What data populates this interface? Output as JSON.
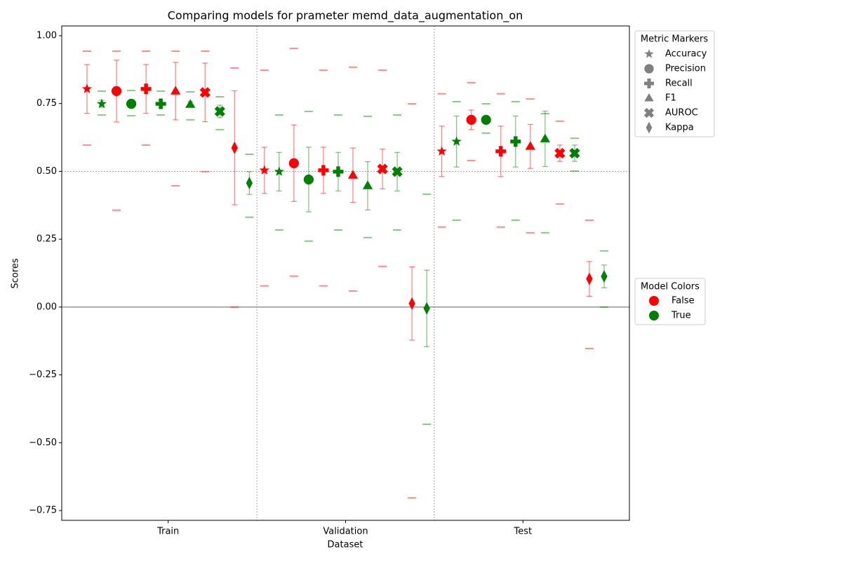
{
  "chart_data": {
    "type": "errorbar",
    "title": "Comparing models for prameter memd_data_augmentation_on",
    "xlabel": "Dataset",
    "ylabel": "Scores",
    "categories": [
      "Train",
      "Validation",
      "Test"
    ],
    "xlim": [
      -0.6,
      2.6
    ],
    "ylim": [
      -0.786,
      1.036
    ],
    "yticks": [
      {
        "value": -0.75,
        "label": "−0.75"
      },
      {
        "value": -0.5,
        "label": "−0.50"
      },
      {
        "value": -0.25,
        "label": "−0.25"
      },
      {
        "value": 0,
        "label": "0.00"
      },
      {
        "value": 0.25,
        "label": "0.25"
      },
      {
        "value": 0.5,
        "label": "0.50"
      },
      {
        "value": 0.75,
        "label": "0.75"
      },
      {
        "value": 1,
        "label": "1.00"
      }
    ],
    "reference_lines": [
      {
        "value": 0,
        "style": "solid",
        "color": "#808080"
      },
      {
        "value": 0.5,
        "style": "dotted",
        "color": "#808080"
      }
    ],
    "marker_legend_title": "Metric Markers",
    "color_legend_title": "Model Colors",
    "models": [
      {
        "name": "False",
        "color": "#ff0000"
      },
      {
        "name": "True",
        "color": "#008000"
      }
    ],
    "metrics": [
      {
        "name": "Accuracy",
        "marker": "star",
        "series": [
          {
            "values": [
              0.804,
              0.504,
              0.574
            ],
            "errors": [
              0.09,
              0.085,
              0.093
            ],
            "mins": [
              0.597,
              0.078,
              0.295
            ],
            "maxs": [
              0.943,
              0.873,
              0.786
            ]
          },
          {
            "values": [
              0.749,
              0.499,
              0.61
            ],
            "errors": [
              0.013,
              0.071,
              0.094
            ],
            "mins": [
              0.708,
              0.284,
              0.32
            ],
            "maxs": [
              0.796,
              0.708,
              0.757
            ]
          }
        ]
      },
      {
        "name": "Precision",
        "marker": "circle",
        "series": [
          {
            "values": [
              0.796,
              0.53,
              0.69
            ],
            "errors": [
              0.114,
              0.141,
              0.036
            ],
            "mins": [
              0.357,
              0.114,
              0.54
            ],
            "maxs": [
              0.943,
              0.953,
              0.827
            ]
          },
          {
            "values": [
              0.749,
              0.47,
              0.69
            ],
            "errors": [
              0.002,
              0.119,
              0.002
            ],
            "mins": [
              0.705,
              0.243,
              0.641
            ],
            "maxs": [
              0.798,
              0.721,
              0.749
            ]
          }
        ]
      },
      {
        "name": "Recall",
        "marker": "plus",
        "series": [
          {
            "values": [
              0.804,
              0.504,
              0.574
            ],
            "errors": [
              0.09,
              0.085,
              0.093
            ],
            "mins": [
              0.597,
              0.078,
              0.295
            ],
            "maxs": [
              0.943,
              0.873,
              0.786
            ]
          },
          {
            "values": [
              0.749,
              0.499,
              0.61
            ],
            "errors": [
              0.013,
              0.071,
              0.094
            ],
            "mins": [
              0.708,
              0.284,
              0.32
            ],
            "maxs": [
              0.796,
              0.708,
              0.757
            ]
          }
        ]
      },
      {
        "name": "F1",
        "marker": "triangle",
        "series": [
          {
            "values": [
              0.796,
              0.486,
              0.592
            ],
            "errors": [
              0.106,
              0.1,
              0.081
            ],
            "mins": [
              0.447,
              0.059,
              0.274
            ],
            "maxs": [
              0.943,
              0.884,
              0.767
            ]
          },
          {
            "values": [
              0.747,
              0.447,
              0.62
            ],
            "errors": [
              0.01,
              0.089,
              0.102
            ],
            "mins": [
              0.69,
              0.256,
              0.274
            ],
            "maxs": [
              0.793,
              0.703,
              0.713
            ]
          }
        ]
      },
      {
        "name": "AUROC",
        "marker": "x",
        "series": [
          {
            "values": [
              0.791,
              0.509,
              0.567
            ],
            "errors": [
              0.108,
              0.073,
              0.03
            ],
            "mins": [
              0.499,
              0.15,
              0.38
            ],
            "maxs": [
              0.943,
              0.873,
              0.685
            ]
          },
          {
            "values": [
              0.721,
              0.499,
              0.567
            ],
            "errors": [
              0.023,
              0.071,
              0.03
            ],
            "mins": [
              0.654,
              0.284,
              0.501
            ],
            "maxs": [
              0.775,
              0.708,
              0.622
            ]
          }
        ]
      },
      {
        "name": "Kappa",
        "marker": "diamond",
        "series": [
          {
            "values": [
              0.587,
              0.013,
              0.104
            ],
            "errors": [
              0.21,
              0.135,
              0.064
            ],
            "mins": [
              0,
              -0.703,
              -0.153
            ],
            "maxs": [
              0.881,
              0.749,
              0.32
            ]
          },
          {
            "values": [
              0.457,
              -0.005,
              0.113
            ],
            "errors": [
              0.042,
              0.141,
              0.042
            ],
            "mins": [
              0.331,
              -0.432,
              0
            ],
            "maxs": [
              0.563,
              0.416,
              0.207
            ]
          }
        ]
      }
    ]
  }
}
